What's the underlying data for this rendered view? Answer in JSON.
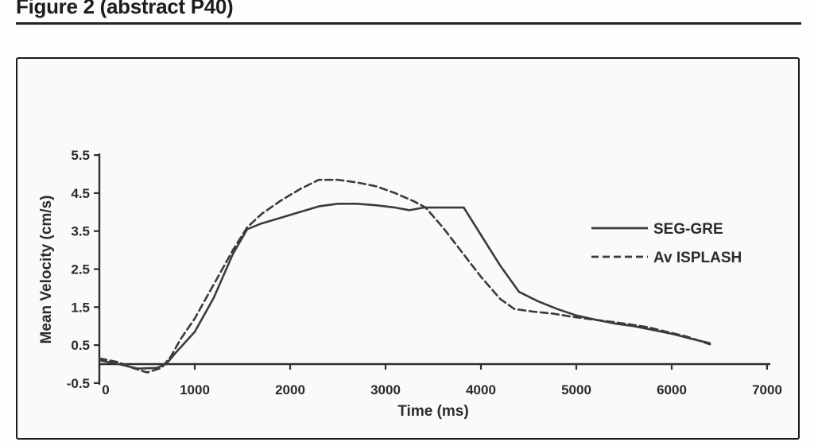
{
  "header": {
    "title": "Figure 2 (abstract P40)"
  },
  "chart_data": {
    "type": "line",
    "title": "",
    "xlabel": "Time (ms)",
    "ylabel": "Mean Velocity (cm/s)",
    "xlim": [
      0,
      7000
    ],
    "ylim": [
      -0.5,
      5.5
    ],
    "x_ticks": [
      0,
      1000,
      2000,
      3000,
      4000,
      5000,
      6000,
      7000
    ],
    "y_ticks": [
      5.5,
      4.5,
      3.5,
      2.5,
      1.5,
      0.5,
      -0.5
    ],
    "grid": false,
    "legend_position": "right-inside",
    "colors": {
      "line": "#3b3b3b",
      "axis": "#2e2e2e",
      "text": "#2b2b2b",
      "panel": "#fbfaf8"
    },
    "series": [
      {
        "name": "SEG-GRE",
        "style": "solid",
        "points": [
          [
            0,
            0.1
          ],
          [
            200,
            0.0
          ],
          [
            400,
            -0.12
          ],
          [
            600,
            -0.1
          ],
          [
            700,
            0.0
          ],
          [
            800,
            0.3
          ],
          [
            1000,
            0.85
          ],
          [
            1200,
            1.75
          ],
          [
            1400,
            2.9
          ],
          [
            1550,
            3.55
          ],
          [
            1700,
            3.7
          ],
          [
            1900,
            3.85
          ],
          [
            2100,
            4.0
          ],
          [
            2300,
            4.15
          ],
          [
            2500,
            4.22
          ],
          [
            2700,
            4.22
          ],
          [
            2900,
            4.18
          ],
          [
            3100,
            4.12
          ],
          [
            3250,
            4.05
          ],
          [
            3400,
            4.12
          ],
          [
            3600,
            4.12
          ],
          [
            3820,
            4.12
          ],
          [
            4000,
            3.4
          ],
          [
            4200,
            2.6
          ],
          [
            4400,
            1.9
          ],
          [
            4600,
            1.65
          ],
          [
            4800,
            1.45
          ],
          [
            5000,
            1.28
          ],
          [
            5200,
            1.17
          ],
          [
            5400,
            1.07
          ],
          [
            5600,
            1.0
          ],
          [
            5800,
            0.9
          ],
          [
            6000,
            0.8
          ],
          [
            6200,
            0.67
          ],
          [
            6400,
            0.55
          ]
        ]
      },
      {
        "name": "Av ISPLASH",
        "style": "dashed",
        "points": [
          [
            0,
            0.15
          ],
          [
            200,
            0.05
          ],
          [
            350,
            -0.1
          ],
          [
            500,
            -0.22
          ],
          [
            650,
            -0.1
          ],
          [
            750,
            0.2
          ],
          [
            850,
            0.65
          ],
          [
            1000,
            1.2
          ],
          [
            1200,
            2.1
          ],
          [
            1400,
            3.0
          ],
          [
            1550,
            3.6
          ],
          [
            1700,
            3.95
          ],
          [
            1900,
            4.3
          ],
          [
            2100,
            4.6
          ],
          [
            2300,
            4.85
          ],
          [
            2500,
            4.85
          ],
          [
            2700,
            4.78
          ],
          [
            2900,
            4.68
          ],
          [
            3100,
            4.5
          ],
          [
            3300,
            4.28
          ],
          [
            3420,
            4.12
          ],
          [
            3600,
            3.6
          ],
          [
            3800,
            2.95
          ],
          [
            4000,
            2.3
          ],
          [
            4200,
            1.72
          ],
          [
            4350,
            1.45
          ],
          [
            4550,
            1.38
          ],
          [
            4750,
            1.33
          ],
          [
            4950,
            1.25
          ],
          [
            5150,
            1.18
          ],
          [
            5350,
            1.12
          ],
          [
            5550,
            1.05
          ],
          [
            5750,
            0.97
          ],
          [
            5950,
            0.85
          ],
          [
            6150,
            0.73
          ],
          [
            6400,
            0.52
          ]
        ]
      }
    ]
  }
}
